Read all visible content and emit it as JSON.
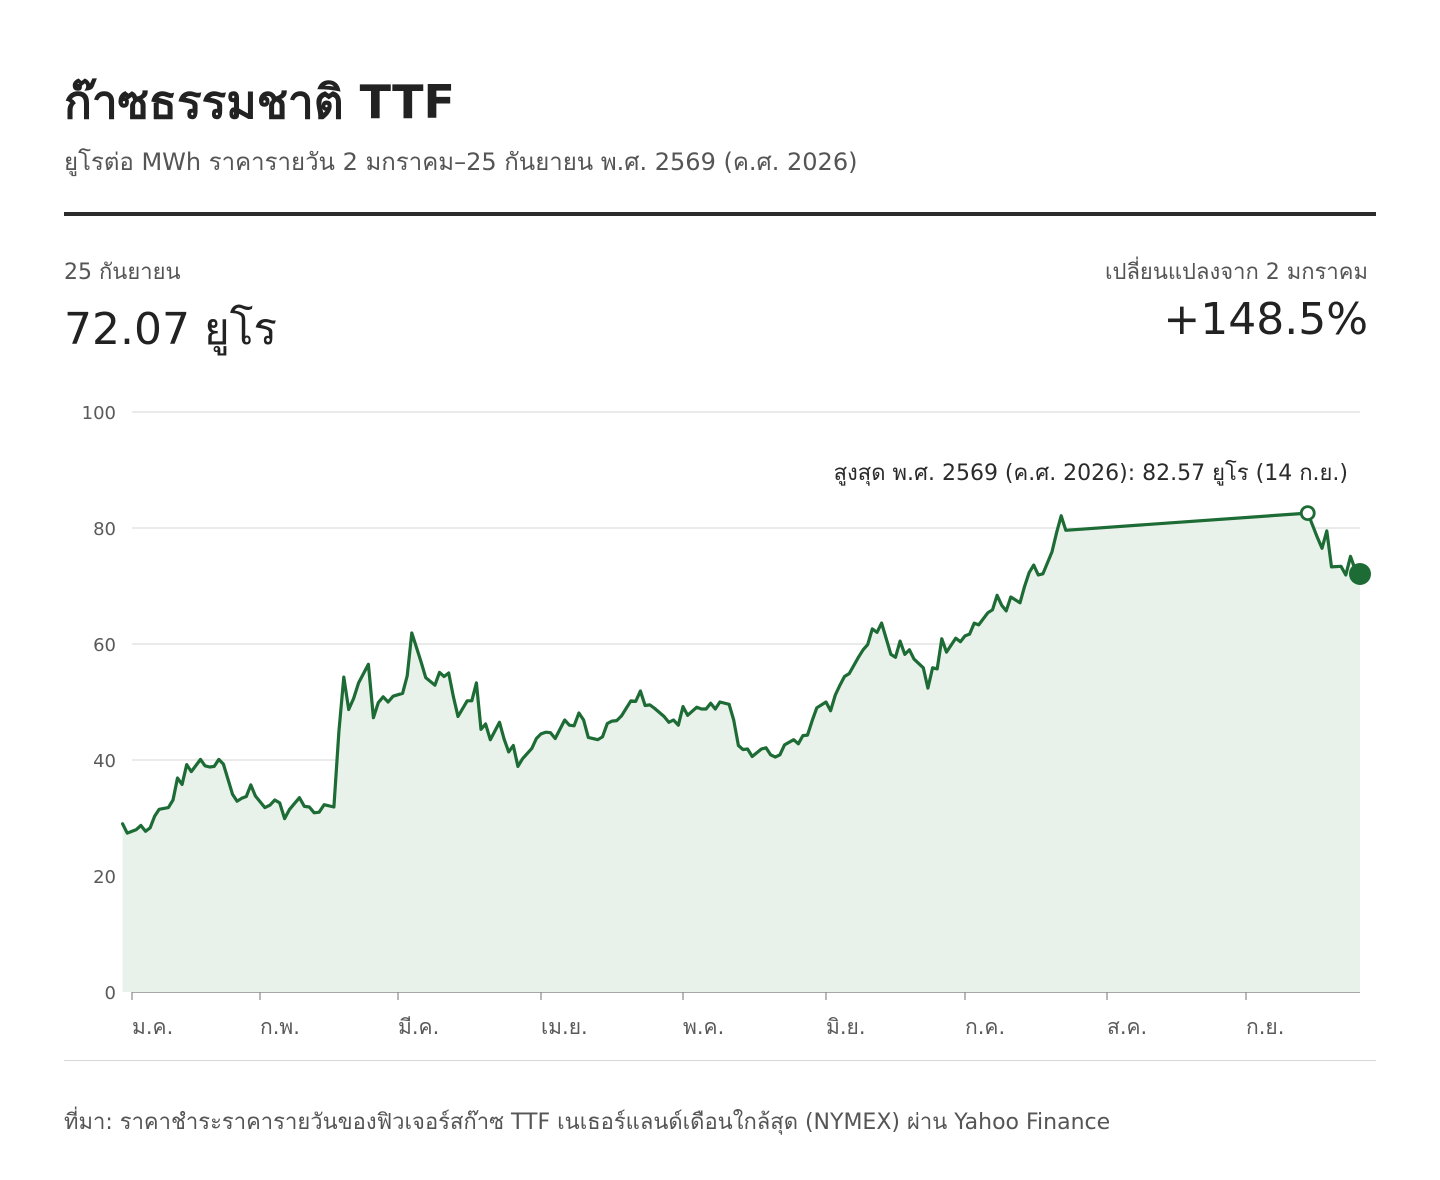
{
  "header": {
    "title": "ก๊าซธรรมชาติ TTF",
    "subtitle": "ยูโรต่อ MWh ราคารายวัน 2 มกราคม–25 กันยายน พ.ศ. 2569 (ค.ศ. 2026)"
  },
  "stats": {
    "latest_label": "25 กันยายน",
    "latest_value": "72.07 ยูโร",
    "change_label": "เปลี่ยนแปลงจาก 2 มกราคม",
    "change_value": "+148.5%"
  },
  "source": "ที่มา: ราคาชำระราคารายวันของฟิวเจอร์สก๊าซ TTF เนเธอร์แลนด์เดือนใกล้สุด (NYMEX) ผ่าน Yahoo Finance",
  "colors": {
    "line": "#1d6b35",
    "area": "#e9f2ea",
    "grid": "#dddddd",
    "text": "#2b2b2b"
  },
  "chart_data": {
    "type": "area",
    "ylim": [
      0,
      100
    ],
    "y_ticks": [
      0,
      20,
      40,
      60,
      80,
      100
    ],
    "x_range": [
      "2026-01-02",
      "2026-09-25"
    ],
    "x_ticks": [
      {
        "date": "2026-01-01",
        "label": "ม.ค."
      },
      {
        "date": "2026-02-01",
        "label": "ก.พ."
      },
      {
        "date": "2026-03-01",
        "label": "มี.ค."
      },
      {
        "date": "2026-04-01",
        "label": "เม.ย."
      },
      {
        "date": "2026-05-01",
        "label": "พ.ค."
      },
      {
        "date": "2026-06-01",
        "label": "มิ.ย."
      },
      {
        "date": "2026-07-01",
        "label": "ก.ค."
      },
      {
        "date": "2026-08-01",
        "label": "ส.ค."
      },
      {
        "date": "2026-09-01",
        "label": "ก.ย."
      }
    ],
    "grid": true,
    "annotation": {
      "text": "สูงสุด พ.ศ. 2569 (ค.ศ. 2026): 82.57 ยูโร (14 ก.ย.)",
      "date": "2026-09-14",
      "value": 82.57
    },
    "last_point": {
      "date": "2026-09-25",
      "value": 72.07
    },
    "series": [
      {
        "points": [
          [
            "2026-01-02",
            29.0
          ],
          [
            "2026-01-03",
            27.4
          ],
          [
            "2026-01-05",
            28.0
          ],
          [
            "2026-01-06",
            28.7
          ],
          [
            "2026-01-07",
            27.7
          ],
          [
            "2026-01-08",
            28.3
          ],
          [
            "2026-01-09",
            30.3
          ],
          [
            "2026-01-10",
            31.5
          ],
          [
            "2026-01-12",
            31.8
          ],
          [
            "2026-01-13",
            33.1
          ],
          [
            "2026-01-14",
            36.9
          ],
          [
            "2026-01-15",
            35.8
          ],
          [
            "2026-01-16",
            39.2
          ],
          [
            "2026-01-17",
            38.0
          ],
          [
            "2026-01-19",
            40.1
          ],
          [
            "2026-01-20",
            39.0
          ],
          [
            "2026-01-21",
            38.8
          ],
          [
            "2026-01-22",
            38.9
          ],
          [
            "2026-01-23",
            40.1
          ],
          [
            "2026-01-24",
            39.3
          ],
          [
            "2026-01-26",
            34.1
          ],
          [
            "2026-01-27",
            32.9
          ],
          [
            "2026-01-28",
            33.4
          ],
          [
            "2026-01-29",
            33.7
          ],
          [
            "2026-01-30",
            35.7
          ],
          [
            "2026-01-31",
            33.8
          ],
          [
            "2026-02-02",
            31.8
          ],
          [
            "2026-02-03",
            32.2
          ],
          [
            "2026-02-04",
            33.1
          ],
          [
            "2026-02-05",
            32.6
          ],
          [
            "2026-02-06",
            29.9
          ],
          [
            "2026-02-07",
            31.5
          ],
          [
            "2026-02-09",
            33.5
          ],
          [
            "2026-02-10",
            32.0
          ],
          [
            "2026-02-11",
            31.9
          ],
          [
            "2026-02-12",
            30.9
          ],
          [
            "2026-02-13",
            31.0
          ],
          [
            "2026-02-14",
            32.3
          ],
          [
            "2026-02-16",
            31.9
          ],
          [
            "2026-02-17",
            44.9
          ],
          [
            "2026-02-18",
            54.3
          ],
          [
            "2026-02-19",
            48.7
          ],
          [
            "2026-02-20",
            50.6
          ],
          [
            "2026-02-21",
            53.3
          ],
          [
            "2026-02-23",
            56.5
          ],
          [
            "2026-02-24",
            47.3
          ],
          [
            "2026-02-25",
            49.9
          ],
          [
            "2026-02-26",
            50.9
          ],
          [
            "2026-02-27",
            50.0
          ],
          [
            "2026-02-28",
            51.0
          ],
          [
            "2026-03-02",
            51.5
          ],
          [
            "2026-03-03",
            54.5
          ],
          [
            "2026-03-04",
            61.9
          ],
          [
            "2026-03-05",
            59.4
          ],
          [
            "2026-03-06",
            56.9
          ],
          [
            "2026-03-07",
            54.2
          ],
          [
            "2026-03-09",
            52.9
          ],
          [
            "2026-03-10",
            55.1
          ],
          [
            "2026-03-11",
            54.4
          ],
          [
            "2026-03-12",
            55.0
          ],
          [
            "2026-03-13",
            50.9
          ],
          [
            "2026-03-14",
            47.5
          ],
          [
            "2026-03-16",
            50.2
          ],
          [
            "2026-03-17",
            50.2
          ],
          [
            "2026-03-18",
            53.3
          ],
          [
            "2026-03-19",
            45.3
          ],
          [
            "2026-03-20",
            46.2
          ],
          [
            "2026-03-21",
            43.5
          ],
          [
            "2026-03-23",
            46.5
          ],
          [
            "2026-03-24",
            43.6
          ],
          [
            "2026-03-25",
            41.4
          ],
          [
            "2026-03-26",
            42.5
          ],
          [
            "2026-03-27",
            38.9
          ],
          [
            "2026-03-28",
            40.2
          ],
          [
            "2026-03-30",
            42.0
          ],
          [
            "2026-03-31",
            43.7
          ],
          [
            "2026-04-01",
            44.5
          ],
          [
            "2026-04-02",
            44.8
          ],
          [
            "2026-04-03",
            44.7
          ],
          [
            "2026-04-04",
            43.7
          ],
          [
            "2026-04-06",
            46.9
          ],
          [
            "2026-04-07",
            46.0
          ],
          [
            "2026-04-08",
            45.9
          ],
          [
            "2026-04-09",
            48.1
          ],
          [
            "2026-04-10",
            46.9
          ],
          [
            "2026-04-11",
            43.9
          ],
          [
            "2026-04-13",
            43.5
          ],
          [
            "2026-04-14",
            44.0
          ],
          [
            "2026-04-15",
            46.3
          ],
          [
            "2026-04-16",
            46.7
          ],
          [
            "2026-04-17",
            46.8
          ],
          [
            "2026-04-18",
            47.6
          ],
          [
            "2026-04-20",
            50.2
          ],
          [
            "2026-04-21",
            50.1
          ],
          [
            "2026-04-22",
            51.9
          ],
          [
            "2026-04-23",
            49.4
          ],
          [
            "2026-04-24",
            49.5
          ],
          [
            "2026-04-25",
            48.9
          ],
          [
            "2026-04-27",
            47.5
          ],
          [
            "2026-04-28",
            46.5
          ],
          [
            "2026-04-29",
            46.9
          ],
          [
            "2026-04-30",
            46.0
          ],
          [
            "2026-05-01",
            49.2
          ],
          [
            "2026-05-02",
            47.7
          ],
          [
            "2026-05-04",
            49.1
          ],
          [
            "2026-05-05",
            48.8
          ],
          [
            "2026-05-06",
            48.8
          ],
          [
            "2026-05-07",
            49.8
          ],
          [
            "2026-05-08",
            48.8
          ],
          [
            "2026-05-09",
            50.0
          ],
          [
            "2026-05-11",
            49.6
          ],
          [
            "2026-05-12",
            46.9
          ],
          [
            "2026-05-13",
            42.5
          ],
          [
            "2026-05-14",
            41.8
          ],
          [
            "2026-05-15",
            41.9
          ],
          [
            "2026-05-16",
            40.6
          ],
          [
            "2026-05-18",
            41.9
          ],
          [
            "2026-05-19",
            42.1
          ],
          [
            "2026-05-20",
            40.9
          ],
          [
            "2026-05-21",
            40.5
          ],
          [
            "2026-05-22",
            40.9
          ],
          [
            "2026-05-23",
            42.6
          ],
          [
            "2026-05-25",
            43.5
          ],
          [
            "2026-05-26",
            42.8
          ],
          [
            "2026-05-27",
            44.2
          ],
          [
            "2026-05-28",
            44.3
          ],
          [
            "2026-05-29",
            46.8
          ],
          [
            "2026-05-30",
            49.0
          ],
          [
            "2026-06-01",
            50.0
          ],
          [
            "2026-06-02",
            48.5
          ],
          [
            "2026-06-03",
            51.2
          ],
          [
            "2026-06-04",
            52.9
          ],
          [
            "2026-06-05",
            54.4
          ],
          [
            "2026-06-06",
            54.9
          ],
          [
            "2026-06-08",
            57.7
          ],
          [
            "2026-06-09",
            59.0
          ],
          [
            "2026-06-10",
            59.9
          ],
          [
            "2026-06-11",
            62.6
          ],
          [
            "2026-06-12",
            62.0
          ],
          [
            "2026-06-13",
            63.6
          ],
          [
            "2026-06-15",
            58.2
          ],
          [
            "2026-06-16",
            57.7
          ],
          [
            "2026-06-17",
            60.5
          ],
          [
            "2026-06-18",
            58.2
          ],
          [
            "2026-06-19",
            59.0
          ],
          [
            "2026-06-20",
            57.4
          ],
          [
            "2026-06-22",
            55.9
          ],
          [
            "2026-06-23",
            52.4
          ],
          [
            "2026-06-24",
            55.9
          ],
          [
            "2026-06-25",
            55.7
          ],
          [
            "2026-06-26",
            60.9
          ],
          [
            "2026-06-27",
            58.6
          ],
          [
            "2026-06-29",
            61.0
          ],
          [
            "2026-06-30",
            60.4
          ],
          [
            "2026-07-01",
            61.4
          ],
          [
            "2026-07-02",
            61.7
          ],
          [
            "2026-07-03",
            63.6
          ],
          [
            "2026-07-04",
            63.3
          ],
          [
            "2026-07-06",
            65.4
          ],
          [
            "2026-07-07",
            65.9
          ],
          [
            "2026-07-08",
            68.4
          ],
          [
            "2026-07-09",
            66.7
          ],
          [
            "2026-07-10",
            65.7
          ],
          [
            "2026-07-11",
            68.1
          ],
          [
            "2026-07-13",
            67.1
          ],
          [
            "2026-07-14",
            69.9
          ],
          [
            "2026-07-15",
            72.3
          ],
          [
            "2026-07-16",
            73.6
          ],
          [
            "2026-07-17",
            71.9
          ],
          [
            "2026-07-18",
            72.1
          ],
          [
            "2026-07-20",
            75.9
          ],
          [
            "2026-07-21",
            79.2
          ],
          [
            "2026-07-22",
            82.1
          ],
          [
            "2026-07-23",
            79.6
          ],
          [
            "2026-09-14",
            82.57
          ],
          [
            "2026-09-15",
            80.5
          ],
          [
            "2026-09-16",
            78.4
          ],
          [
            "2026-09-17",
            76.5
          ],
          [
            "2026-09-18",
            79.5
          ],
          [
            "2026-09-19",
            73.3
          ],
          [
            "2026-09-21",
            73.4
          ],
          [
            "2026-09-22",
            71.9
          ],
          [
            "2026-09-23",
            75.1
          ],
          [
            "2026-09-24",
            72.8
          ],
          [
            "2026-09-25",
            72.07
          ]
        ]
      }
    ]
  }
}
